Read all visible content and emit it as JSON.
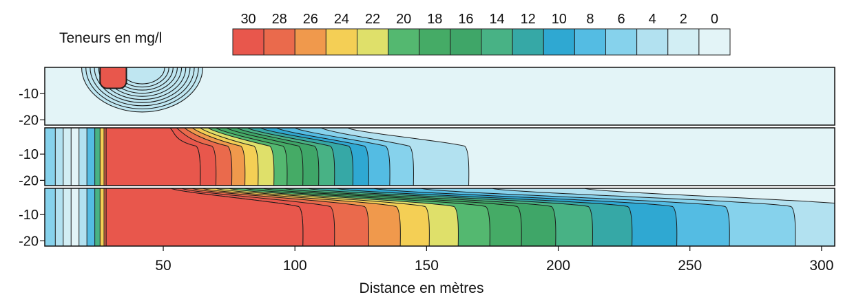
{
  "chart_data": {
    "type": "heatmap",
    "legend": {
      "title": "Teneurs en mg/l",
      "levels": [
        30,
        28,
        26,
        24,
        22,
        20,
        18,
        16,
        14,
        12,
        10,
        8,
        6,
        4,
        2,
        0
      ],
      "colors": [
        "#e8574c",
        "#ea6a4c",
        "#f0994c",
        "#f4cf55",
        "#dfe06a",
        "#54b870",
        "#45ab66",
        "#3fa668",
        "#48b285",
        "#36a8a6",
        "#2fa8d2",
        "#54bce3",
        "#86d2ec",
        "#b2e1f0",
        "#d2eef4",
        "#e3f4f7"
      ]
    },
    "x_ticks": [
      50,
      100,
      150,
      200,
      250,
      300
    ],
    "y_ticks": [
      -10,
      -20
    ],
    "xlabel": "Distance en mètres",
    "xlim": [
      5,
      305
    ],
    "ylim": [
      -22,
      0
    ],
    "panels": [
      {
        "fronts": [],
        "source": {
          "x_start": 26,
          "x_end": 36,
          "z_bottom": -8
        },
        "plume": {
          "x_center": 42,
          "x_half_width": 23,
          "z_bottom": -17,
          "rings": 10
        }
      },
      {
        "fronts": [
          {
            "value": 30,
            "top": 52.5,
            "bottom": 64
          },
          {
            "value": 28,
            "top": 55,
            "bottom": 70
          },
          {
            "value": 26,
            "top": 58,
            "bottom": 76
          },
          {
            "value": 24,
            "top": 61,
            "bottom": 81
          },
          {
            "value": 22,
            "top": 64,
            "bottom": 86
          },
          {
            "value": 20,
            "top": 67,
            "bottom": 92
          },
          {
            "value": 18,
            "top": 70,
            "bottom": 97
          },
          {
            "value": 16,
            "top": 74,
            "bottom": 103
          },
          {
            "value": 14,
            "top": 78,
            "bottom": 109
          },
          {
            "value": 12,
            "top": 82,
            "bottom": 115
          },
          {
            "value": 10,
            "top": 87,
            "bottom": 122
          },
          {
            "value": 8,
            "top": 93,
            "bottom": 128
          },
          {
            "value": 6,
            "top": 100,
            "bottom": 136
          },
          {
            "value": 4,
            "top": 110,
            "bottom": 145
          },
          {
            "value": 2,
            "top": 120,
            "bottom": 166
          }
        ]
      },
      {
        "fronts": [
          {
            "value": 30,
            "top": 53,
            "bottom": 103
          },
          {
            "value": 28,
            "top": 57,
            "bottom": 115
          },
          {
            "value": 26,
            "top": 61,
            "bottom": 128
          },
          {
            "value": 24,
            "top": 65,
            "bottom": 140
          },
          {
            "value": 22,
            "top": 70,
            "bottom": 151
          },
          {
            "value": 20,
            "top": 75,
            "bottom": 162
          },
          {
            "value": 18,
            "top": 81,
            "bottom": 174
          },
          {
            "value": 16,
            "top": 88,
            "bottom": 186
          },
          {
            "value": 14,
            "top": 96,
            "bottom": 199
          },
          {
            "value": 12,
            "top": 105,
            "bottom": 213
          },
          {
            "value": 10,
            "top": 116,
            "bottom": 228
          },
          {
            "value": 8,
            "top": 130,
            "bottom": 245
          },
          {
            "value": 6,
            "top": 148,
            "bottom": 265
          },
          {
            "value": 4,
            "top": 175,
            "bottom": 290
          },
          {
            "value": 2,
            "top": 210,
            "bottom": 320
          }
        ]
      }
    ]
  }
}
